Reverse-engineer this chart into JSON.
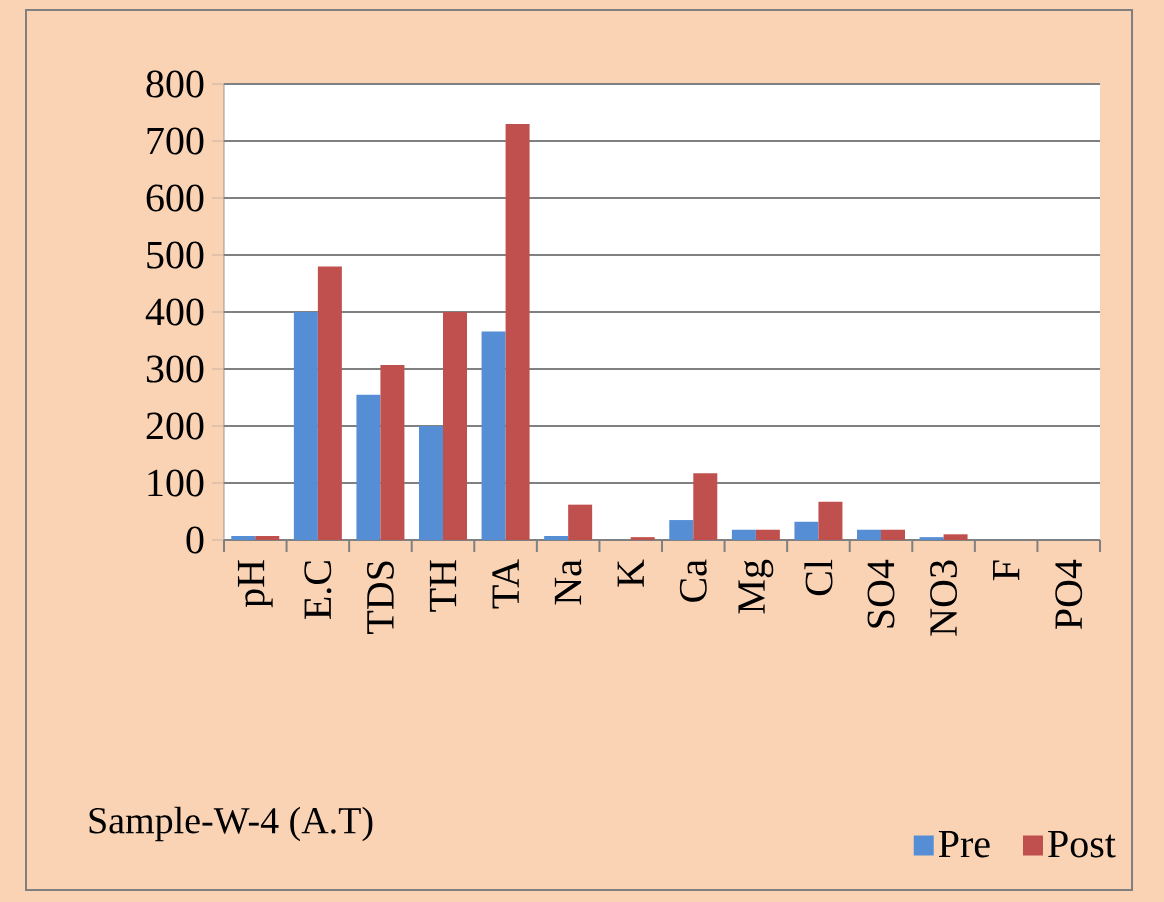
{
  "chart_data": {
    "type": "bar",
    "title": "Sample-W-4  (A.T)",
    "categories": [
      "pH",
      "E.C",
      "TDS",
      "TH",
      "TA",
      "Na",
      "K",
      "Ca",
      "Mg",
      "Cl",
      "SO4",
      "NO3",
      "F",
      "PO4"
    ],
    "series": [
      {
        "name": "Pre",
        "color": "#558ED5",
        "values": [
          7,
          400,
          255,
          200,
          366,
          7,
          0,
          35,
          18,
          32,
          18,
          5,
          0,
          0
        ]
      },
      {
        "name": "Post",
        "color": "#C0504D",
        "values": [
          7,
          480,
          307,
          400,
          730,
          62,
          5,
          117,
          18,
          67,
          18,
          10,
          0,
          0
        ]
      }
    ],
    "ylim": [
      0,
      800
    ],
    "yticks": [
      0,
      100,
      200,
      300,
      400,
      500,
      600,
      700,
      800
    ],
    "grid": "y",
    "legend": "bottom right"
  }
}
